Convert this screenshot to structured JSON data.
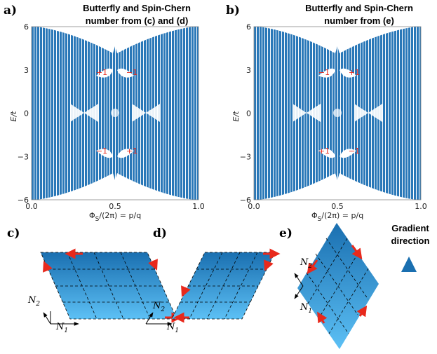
{
  "panels": [
    {
      "label": "a)",
      "title": [
        "Butterfly and Spin-Chern",
        "number from (c) and (d)"
      ],
      "yticks": [
        "6",
        "3",
        "0",
        "−3",
        "−6"
      ],
      "xticks": [
        "0.0",
        "0.5",
        "1.0"
      ],
      "ylabel": "E/t",
      "xlabel": [
        "Φ",
        "S",
        "/(2π) = p/q"
      ],
      "chern": [
        "+1",
        "−1",
        "−1",
        "+1"
      ]
    },
    {
      "label": "b)",
      "title": [
        "Butterfly and Spin-Chern",
        "number from (e)"
      ],
      "yticks": [
        "6",
        "3",
        "0",
        "−3",
        "−6"
      ],
      "xticks": [
        "0.0",
        "0.5",
        "1.0"
      ],
      "ylabel": "E/t",
      "xlabel": [
        "Φ",
        "S",
        "/(2π) = p/q"
      ],
      "chern": [
        "−1",
        "+1",
        "+1",
        "−1"
      ]
    }
  ],
  "lattices": [
    {
      "label": "c)",
      "n2": [
        "N",
        "2"
      ],
      "n1": [
        "N",
        "1"
      ]
    },
    {
      "label": "d)",
      "n2": [
        "N",
        "2"
      ],
      "n1": [
        "N",
        "1"
      ]
    },
    {
      "label": "e)",
      "n2": [
        "N",
        "2"
      ],
      "n1": [
        "N",
        "1"
      ]
    }
  ],
  "gradient": [
    "Gradient",
    "direction"
  ]
}
